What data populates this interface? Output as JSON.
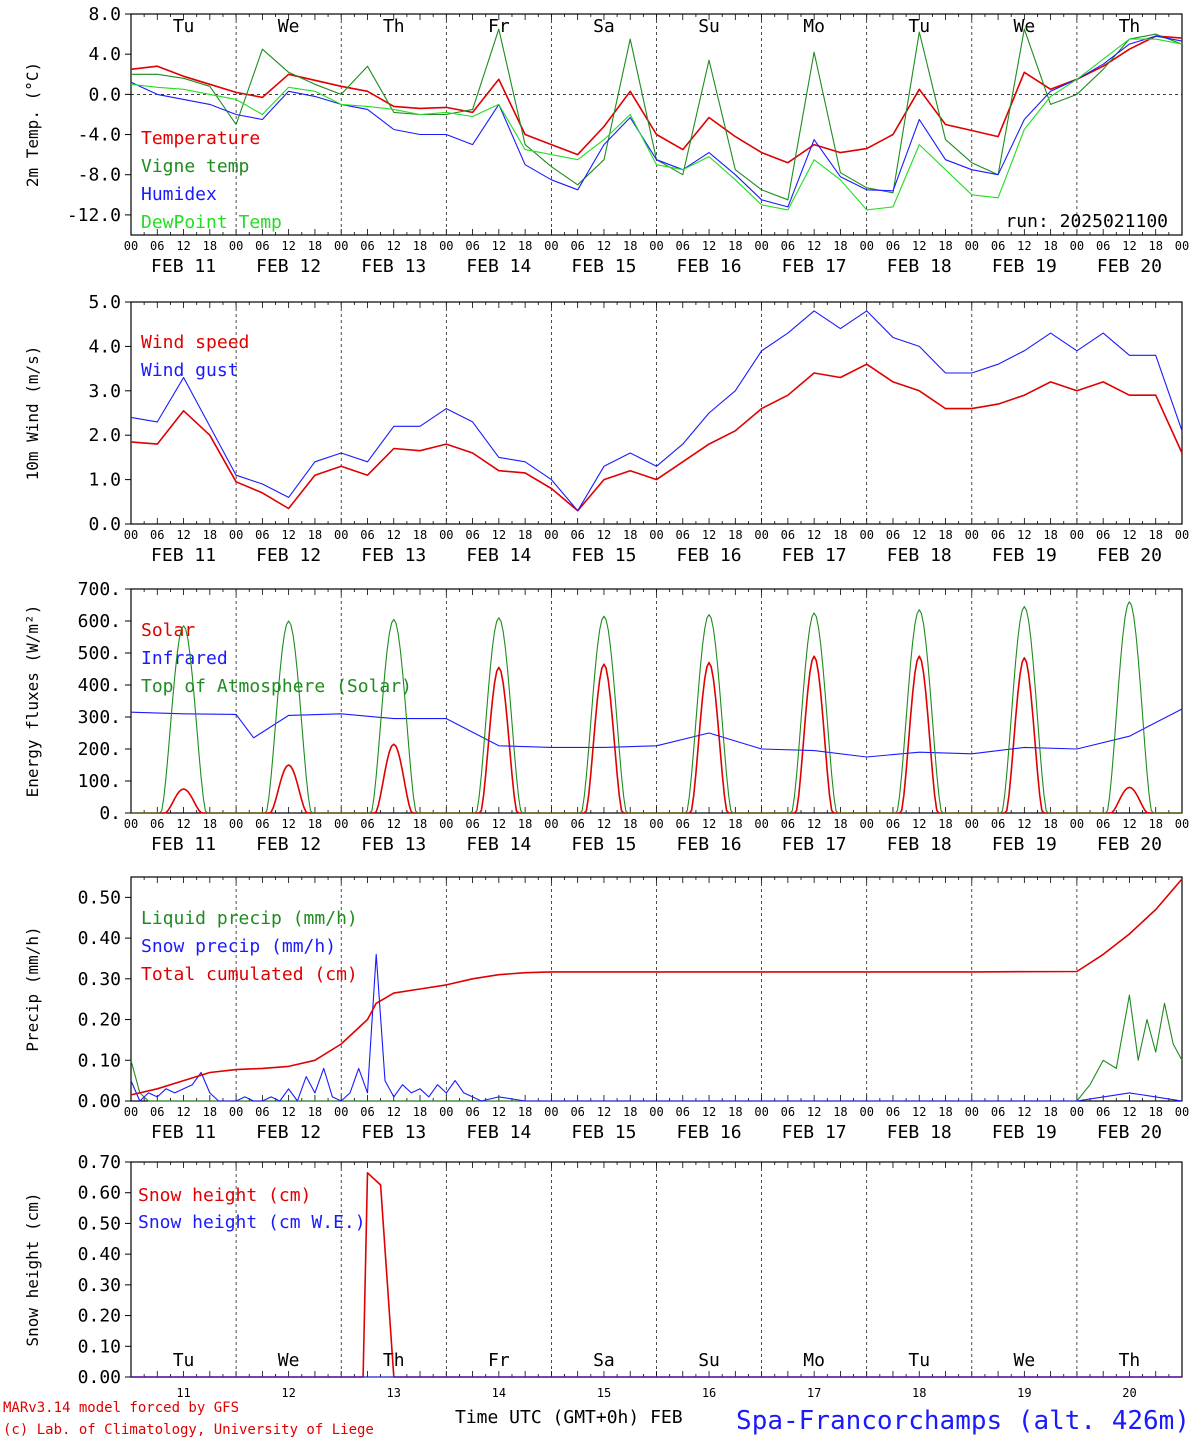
{
  "station": "Spa-Francorchamps (alt. 426m)",
  "footer": {
    "model": "MARv3.14 model forced by GFS",
    "credit": "(c) Lab. of Climatology, University of Liege",
    "time_axis": "Time UTC (GMT+0h) FEB"
  },
  "colors": {
    "red": "#e00000",
    "blue": "#1a1aff",
    "green": "#1e8c1e",
    "lightgreen": "#22dd22",
    "grid": "#000000"
  },
  "days": [
    "Tu",
    "We",
    "Th",
    "Fr",
    "Sa",
    "Su",
    "Mo",
    "Tu",
    "We",
    "Th"
  ],
  "weekend_days": [
    "Sa",
    "Su"
  ],
  "date_labels": [
    "FEB 11",
    "FEB 12",
    "FEB 13",
    "FEB 14",
    "FEB 15",
    "FEB 16",
    "FEB 17",
    "FEB 18",
    "FEB 19",
    "FEB 20"
  ],
  "day_numbers": [
    "11",
    "12",
    "13",
    "14",
    "15",
    "16",
    "17",
    "18",
    "19",
    "20"
  ],
  "hour_ticks": [
    "00",
    "06",
    "12",
    "18"
  ],
  "chart_data": [
    {
      "type": "line",
      "ylabel": "2m Temp. (°C)",
      "ylim": [
        -14,
        8
      ],
      "yticks": [
        8,
        4,
        0,
        -4,
        -8,
        -12
      ],
      "ytick_labels": [
        "8.0",
        "4.0",
        "0.0",
        "-4.0",
        "-8.0",
        "-12.0"
      ],
      "zero_line": true,
      "annotation": "run: 2025021100",
      "x_hours": [
        0,
        6,
        12,
        18,
        24,
        30,
        36,
        42,
        48,
        54,
        60,
        66,
        72,
        78,
        84,
        90,
        96,
        102,
        108,
        114,
        120,
        126,
        132,
        138,
        144,
        150,
        156,
        162,
        168,
        174,
        180,
        186,
        192,
        198,
        204,
        210,
        216,
        222,
        228,
        234,
        240
      ],
      "series": [
        {
          "name": "Temperature",
          "color": "red",
          "values": [
            2.5,
            2.8,
            1.8,
            1.0,
            0.2,
            -0.3,
            2.0,
            1.4,
            0.8,
            0.3,
            -1.2,
            -1.4,
            -1.3,
            -1.8,
            1.5,
            -4.0,
            -5.0,
            -6.0,
            -3.2,
            0.3,
            -4.0,
            -5.5,
            -2.3,
            -4.2,
            -5.8,
            -6.8,
            -5.0,
            -5.8,
            -5.4,
            -4.0,
            0.5,
            -3.0,
            -3.6,
            -4.2,
            2.2,
            0.5,
            1.5,
            2.8,
            4.5,
            5.8,
            5.6
          ]
        },
        {
          "name": "Vigne temp",
          "color": "green",
          "values": [
            2.0,
            2.0,
            1.6,
            0.8,
            -3.0,
            4.5,
            2.2,
            1.0,
            0.0,
            2.8,
            -1.8,
            -2.0,
            -2.0,
            -1.5,
            6.5,
            -5.0,
            -7.2,
            -9.0,
            -6.5,
            5.5,
            -6.5,
            -8.0,
            3.4,
            -7.5,
            -9.5,
            -10.5,
            4.2,
            -7.8,
            -9.3,
            -9.8,
            6.2,
            -4.5,
            -6.8,
            -8.0,
            6.5,
            -1.0,
            0.0,
            2.5,
            5.5,
            6.0,
            5.0
          ]
        },
        {
          "name": "Humidex",
          "color": "blue",
          "values": [
            1.2,
            0.0,
            -0.5,
            -1.0,
            -2.0,
            -2.5,
            0.3,
            -0.2,
            -1.0,
            -1.5,
            -3.5,
            -4.0,
            -4.0,
            -5.0,
            -1.0,
            -7.0,
            -8.5,
            -9.5,
            -5.0,
            -2.3,
            -6.5,
            -7.5,
            -5.8,
            -8.0,
            -10.5,
            -11.2,
            -4.5,
            -8.2,
            -9.5,
            -9.6,
            -2.5,
            -6.5,
            -7.5,
            -8.0,
            -2.5,
            0.3,
            1.5,
            3.0,
            5.0,
            5.8,
            5.3
          ]
        },
        {
          "name": "DewPoint Temp",
          "color": "lightgreen",
          "values": [
            1.0,
            0.7,
            0.5,
            0.0,
            -0.5,
            -2.0,
            0.7,
            0.3,
            -1.0,
            -1.2,
            -1.5,
            -2.0,
            -1.8,
            -2.2,
            -1.0,
            -5.5,
            -6.0,
            -6.5,
            -4.5,
            -2.0,
            -7.0,
            -7.5,
            -6.2,
            -8.5,
            -11.0,
            -11.5,
            -6.5,
            -8.5,
            -11.5,
            -11.2,
            -5.0,
            -7.5,
            -10.0,
            -10.3,
            -3.5,
            -0.2,
            1.5,
            3.5,
            5.5,
            5.5,
            5.0
          ]
        }
      ]
    },
    {
      "type": "line",
      "ylabel": "10m Wind (m/s)",
      "ylim": [
        0,
        5
      ],
      "yticks": [
        5,
        4,
        3,
        2,
        1,
        0
      ],
      "ytick_labels": [
        "5.0",
        "4.0",
        "3.0",
        "2.0",
        "1.0",
        "0.0"
      ],
      "x_hours": [
        0,
        6,
        12,
        18,
        24,
        30,
        36,
        42,
        48,
        54,
        60,
        66,
        72,
        78,
        84,
        90,
        96,
        102,
        108,
        114,
        120,
        126,
        132,
        138,
        144,
        150,
        156,
        162,
        168,
        174,
        180,
        186,
        192,
        198,
        204,
        210,
        216,
        222,
        228,
        234,
        240
      ],
      "series": [
        {
          "name": "Wind speed",
          "color": "red",
          "values": [
            1.85,
            1.8,
            2.55,
            2.0,
            0.95,
            0.7,
            0.35,
            1.1,
            1.3,
            1.1,
            1.7,
            1.65,
            1.8,
            1.6,
            1.2,
            1.15,
            0.8,
            0.3,
            1.0,
            1.2,
            1.0,
            1.4,
            1.8,
            2.1,
            2.6,
            2.9,
            3.4,
            3.3,
            3.6,
            3.2,
            3.0,
            2.6,
            2.6,
            2.7,
            2.9,
            3.2,
            3.0,
            3.2,
            2.9,
            2.9,
            1.6
          ]
        },
        {
          "name": "Wind gust",
          "color": "blue",
          "values": [
            2.4,
            2.3,
            3.3,
            2.2,
            1.1,
            0.9,
            0.6,
            1.4,
            1.6,
            1.4,
            2.2,
            2.2,
            2.6,
            2.3,
            1.5,
            1.4,
            1.0,
            0.3,
            1.3,
            1.6,
            1.3,
            1.8,
            2.5,
            3.0,
            3.9,
            4.3,
            4.8,
            4.4,
            4.8,
            4.2,
            4.0,
            3.4,
            3.4,
            3.6,
            3.9,
            4.3,
            3.9,
            4.3,
            3.8,
            3.8,
            2.1
          ]
        }
      ]
    },
    {
      "type": "line",
      "ylabel": "Energy fluxes (W/m²)",
      "ylim": [
        0,
        700
      ],
      "yticks": [
        700,
        600,
        500,
        400,
        300,
        200,
        100,
        0
      ],
      "ytick_labels": [
        "700.",
        "600.",
        "500.",
        "400.",
        "300.",
        "200.",
        "100.",
        "0."
      ],
      "series": [
        {
          "name": "Solar",
          "color": "red",
          "peaks": [
            75,
            150,
            215,
            455,
            465,
            470,
            490,
            490,
            485,
            80
          ]
        },
        {
          "name": "Infrared",
          "color": "blue",
          "x_hours": [
            0,
            12,
            24,
            28,
            36,
            48,
            60,
            72,
            84,
            96,
            108,
            120,
            132,
            144,
            156,
            168,
            180,
            192,
            204,
            216,
            228,
            240
          ],
          "values": [
            315,
            310,
            308,
            235,
            305,
            310,
            295,
            295,
            210,
            205,
            205,
            210,
            250,
            200,
            195,
            175,
            190,
            185,
            205,
            200,
            240,
            325
          ]
        },
        {
          "name": "Top of Atmosphere (Solar)",
          "color": "green",
          "peaks": [
            585,
            600,
            605,
            610,
            615,
            620,
            625,
            635,
            645,
            660
          ]
        }
      ]
    },
    {
      "type": "line",
      "ylabel": "Precip (mm/h)",
      "ylim": [
        0,
        0.55
      ],
      "yticks": [
        0.5,
        0.4,
        0.3,
        0.2,
        0.1,
        0.0
      ],
      "ytick_labels": [
        "0.50",
        "0.40",
        "0.30",
        "0.20",
        "0.10",
        "0.00"
      ],
      "series": [
        {
          "name": "Liquid precip (mm/h)",
          "color": "green",
          "x_hours": [
            0,
            2,
            4,
            6,
            12,
            18,
            24,
            216,
            219,
            222,
            225,
            228,
            230,
            232,
            234,
            236,
            238,
            240
          ],
          "values": [
            0.1,
            0.02,
            0.0,
            0.0,
            0.0,
            0.0,
            0.0,
            0.0,
            0.04,
            0.1,
            0.08,
            0.26,
            0.1,
            0.2,
            0.12,
            0.24,
            0.14,
            0.1
          ]
        },
        {
          "name": "Snow precip (mm/h)",
          "color": "blue",
          "x_hours": [
            0,
            2,
            4,
            6,
            8,
            10,
            12,
            14,
            16,
            18,
            20,
            22,
            24,
            26,
            28,
            30,
            32,
            34,
            36,
            38,
            40,
            42,
            44,
            46,
            48,
            50,
            52,
            54,
            56,
            58,
            60,
            62,
            64,
            66,
            68,
            70,
            72,
            74,
            76,
            78,
            80,
            84,
            90,
            96,
            216,
            222,
            228,
            234,
            240
          ],
          "values": [
            0.05,
            0.0,
            0.02,
            0.01,
            0.03,
            0.02,
            0.03,
            0.04,
            0.07,
            0.02,
            0.0,
            0.0,
            0.0,
            0.01,
            0.0,
            0.0,
            0.01,
            0.0,
            0.03,
            0.0,
            0.06,
            0.02,
            0.08,
            0.01,
            0.0,
            0.02,
            0.08,
            0.02,
            0.36,
            0.05,
            0.01,
            0.04,
            0.02,
            0.03,
            0.01,
            0.04,
            0.02,
            0.05,
            0.02,
            0.01,
            0.0,
            0.01,
            0.0,
            0.0,
            0.0,
            0.01,
            0.02,
            0.01,
            0.0
          ]
        },
        {
          "name": "Total cumulated (cm)",
          "color": "red",
          "x_hours": [
            0,
            6,
            12,
            18,
            24,
            30,
            36,
            42,
            48,
            54,
            56,
            60,
            66,
            72,
            78,
            84,
            90,
            96,
            120,
            144,
            168,
            192,
            216,
            222,
            228,
            234,
            240
          ],
          "values": [
            0.015,
            0.03,
            0.05,
            0.07,
            0.077,
            0.08,
            0.085,
            0.1,
            0.14,
            0.2,
            0.24,
            0.265,
            0.275,
            0.285,
            0.3,
            0.31,
            0.315,
            0.317,
            0.317,
            0.317,
            0.317,
            0.317,
            0.318,
            0.36,
            0.41,
            0.47,
            0.545
          ]
        }
      ]
    },
    {
      "type": "line",
      "ylabel": "Snow height (cm)",
      "ylim": [
        0,
        0.7
      ],
      "yticks": [
        0.7,
        0.6,
        0.5,
        0.4,
        0.3,
        0.2,
        0.1,
        0.0
      ],
      "ytick_labels": [
        "0.70",
        "0.60",
        "0.50",
        "0.40",
        "0.30",
        "0.20",
        "0.10",
        "0.00"
      ],
      "series": [
        {
          "name": "Snow height (cm)",
          "color": "red",
          "x_hours": [
            0,
            53,
            54,
            57,
            60,
            240
          ],
          "values": [
            0.0,
            0.0,
            0.665,
            0.625,
            0.0,
            0.0
          ]
        },
        {
          "name": "Snow height (cm W.E.)",
          "color": "blue",
          "x_hours": [
            0,
            240
          ],
          "values": [
            0.0,
            0.0
          ]
        }
      ]
    }
  ]
}
